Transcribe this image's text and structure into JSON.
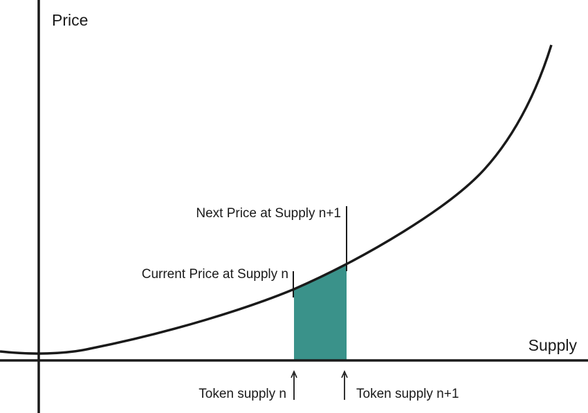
{
  "labels": {
    "y_axis": "Price",
    "x_axis": "Supply",
    "next_price": "Next Price at Supply n+1",
    "current_price": "Current Price at Supply n",
    "token_supply_n": "Token supply n",
    "token_supply_n1": "Token supply n+1"
  },
  "colors": {
    "area_fill": "#3a928a",
    "line": "#1a1a1a",
    "background": "#ffffff"
  },
  "curve": {
    "shape": "convex increasing (bonding curve)"
  }
}
